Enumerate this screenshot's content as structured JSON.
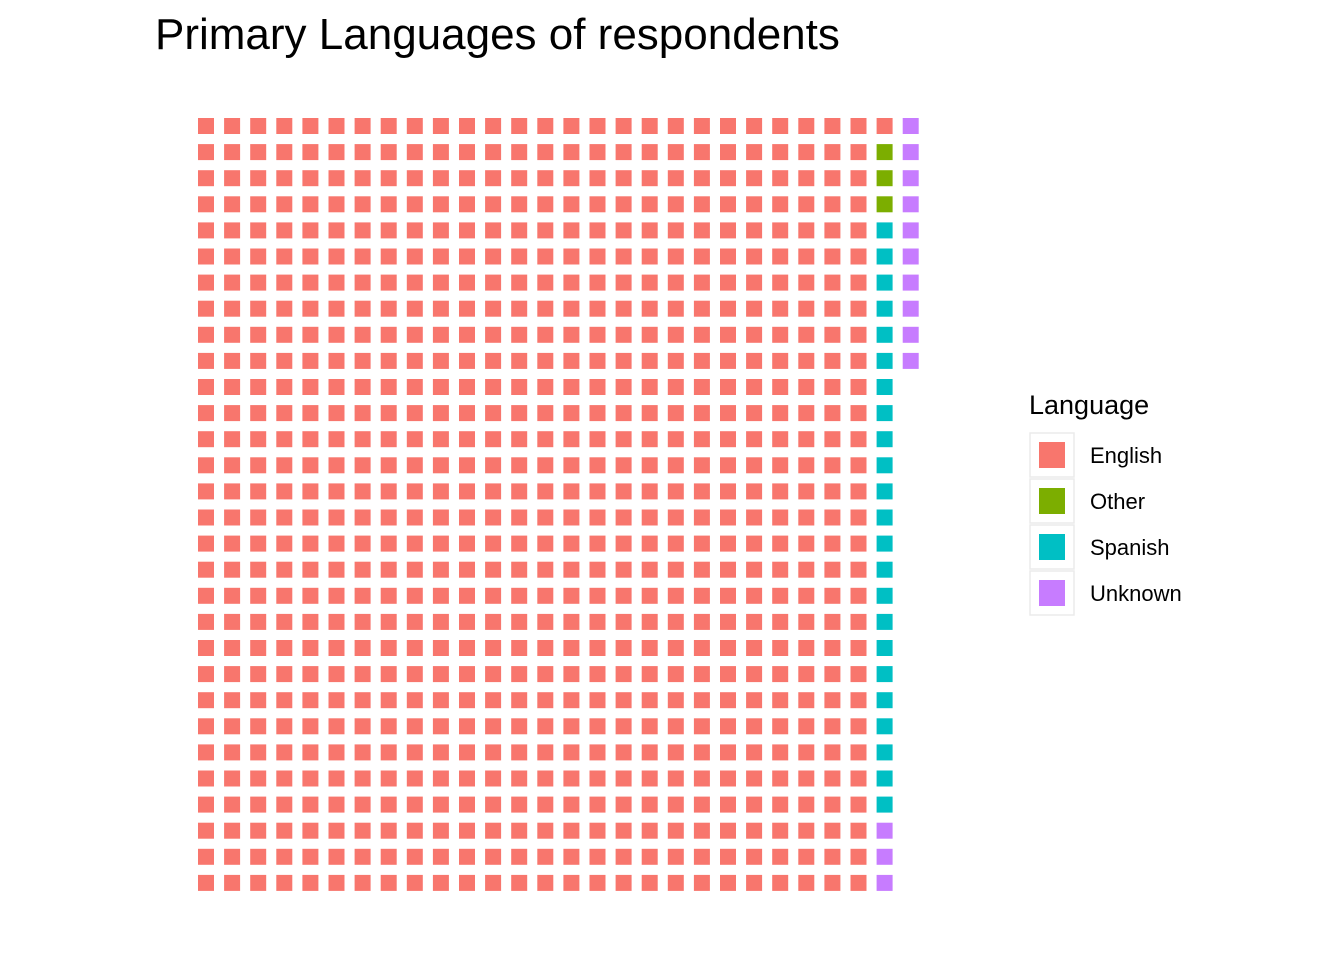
{
  "chart_data": {
    "type": "waffle",
    "title": "Primary Languages of respondents",
    "xlabel": "",
    "ylabel": "",
    "grid": false,
    "legend": {
      "title": "Language",
      "placement": "right"
    },
    "rows": 30,
    "fill_order": "column-wise, top to bottom, left to right",
    "categories": [
      "English",
      "Other",
      "Spanish",
      "Unknown"
    ],
    "values": [
      781,
      3,
      23,
      13
    ],
    "colors": {
      "English": "#F8766D",
      "Other": "#7CAE00",
      "Spanish": "#00BFC4",
      "Unknown": "#C77CFF"
    }
  }
}
